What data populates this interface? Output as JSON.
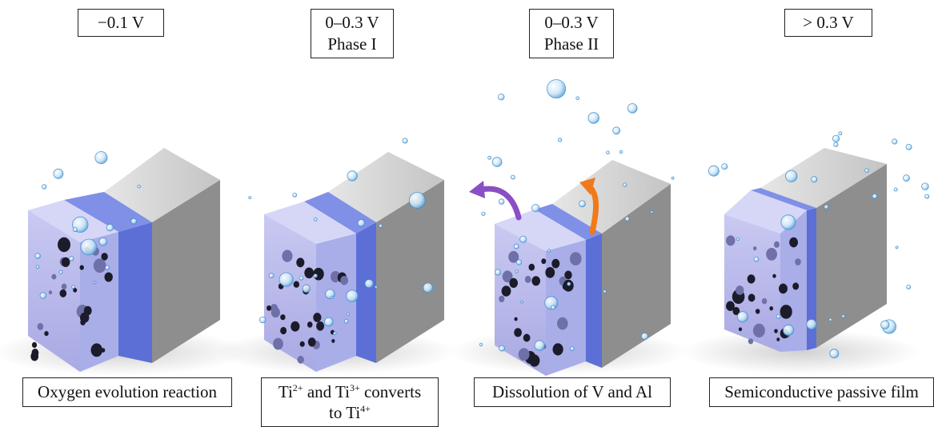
{
  "stages": [
    {
      "voltage": "−0.1 V",
      "phase": "",
      "caption": "Oxygen evolution reaction"
    },
    {
      "voltage": "0–0.3 V",
      "phase": "Phase I",
      "caption_parts": [
        "Ti",
        "2+",
        " and Ti",
        "3+",
        " converts",
        "to Ti",
        "4+"
      ]
    },
    {
      "voltage": "0–0.3 V",
      "phase": "Phase II",
      "caption": "Dissolution of V and Al"
    },
    {
      "voltage": "> 0.3 V",
      "phase": "",
      "caption": "Semiconductive passive film"
    }
  ],
  "colors": {
    "porous_front": "#b9b9ec",
    "porous_top": "#d6d6f7",
    "blue_layer": "#5b6fd6",
    "blue_layer_top": "#7f90e6",
    "metal_front": "#bdbdbd",
    "metal_side": "#8f8f8f",
    "metal_top": "#d9d9d9",
    "arrow_purple": "#8a4fc4",
    "arrow_orange": "#f07a1a",
    "bubble": "#8ec3ea"
  }
}
